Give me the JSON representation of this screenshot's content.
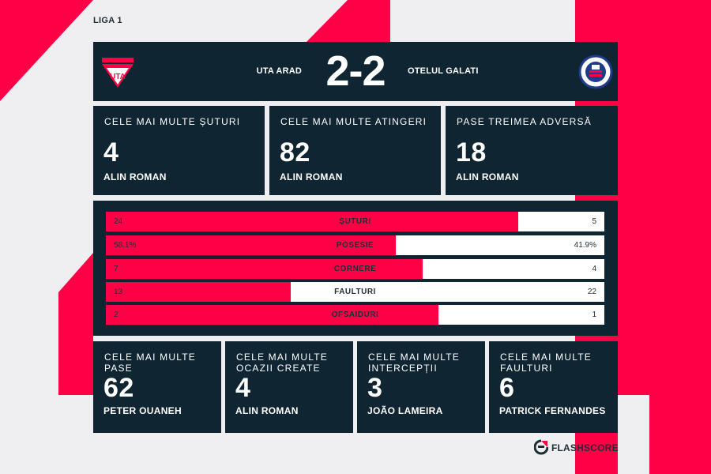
{
  "league": "LIGA 1",
  "match": {
    "home_team": "UTA ARAD",
    "away_team": "OTELUL GALATI",
    "score": "2-2",
    "home_crest_icon": "uta-arad-crest-icon",
    "away_crest_icon": "otelul-galati-crest-icon"
  },
  "top_cards": [
    {
      "label": "CELE MAI MULTE ȘUTURI",
      "value": "4",
      "player": "ALIN ROMAN"
    },
    {
      "label": "CELE MAI MULTE ATINGERI",
      "value": "82",
      "player": "ALIN ROMAN"
    },
    {
      "label": "PASE TREIMEA ADVERSĂ",
      "value": "18",
      "player": "ALIN ROMAN"
    }
  ],
  "stats": [
    {
      "label": "ȘUTURI",
      "home": "24",
      "away": "5",
      "home_share": 0.827
    },
    {
      "label": "POSESIE",
      "home": "58.1%",
      "away": "41.9%",
      "home_share": 0.581
    },
    {
      "label": "CORNERE",
      "home": "7",
      "away": "4",
      "home_share": 0.636
    },
    {
      "label": "FAULTURI",
      "home": "13",
      "away": "22",
      "home_share": 0.371
    },
    {
      "label": "OFSAIDURI",
      "home": "2",
      "away": "1",
      "home_share": 0.667
    }
  ],
  "bottom_cards": [
    {
      "label": "CELE MAI MULTE PASE",
      "value": "62",
      "player": "PETER OUANEH"
    },
    {
      "label": "CELE MAI MULTE OCAZII CREATE",
      "value": "4",
      "player": "ALIN ROMAN"
    },
    {
      "label": "CELE MAI MULTE INTERCEPȚII",
      "value": "3",
      "player": "JOÃO LAMEIRA"
    },
    {
      "label": "CELE MAI MULTE FAULTURI",
      "value": "6",
      "player": "PATRICK FERNANDES"
    }
  ],
  "brand": {
    "name": "FLASHSCORE",
    "icon": "flashscore-logo-icon"
  },
  "colors": {
    "panel": "#0f2531",
    "accent": "#ff0046",
    "background": "#efeff1",
    "text_dark": "#1f2c36"
  }
}
